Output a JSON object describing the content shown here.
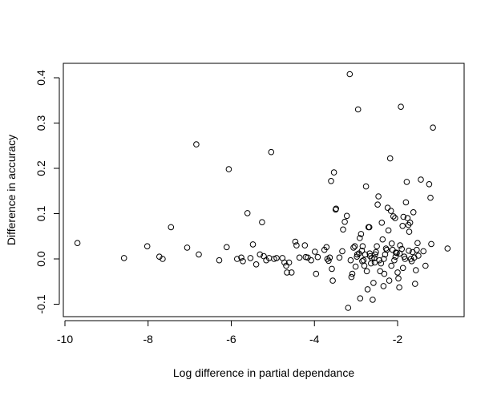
{
  "chart_data": {
    "type": "scatter",
    "title": "",
    "xlabel": "Log difference in partial dependance",
    "ylabel": "Difference in accuracy",
    "xlim": [
      -10,
      -0.6
    ],
    "ylim": [
      -0.12,
      0.44
    ],
    "x_ticks": [
      -10,
      -8,
      -6,
      -4,
      -2
    ],
    "x_tick_labels": [
      "-10",
      "-8",
      "-6",
      "-4",
      "-2"
    ],
    "y_ticks": [
      -0.1,
      0.0,
      0.1,
      0.2,
      0.3,
      0.4
    ],
    "y_tick_labels": [
      "-0.1",
      "0.0",
      "0.1",
      "0.2",
      "0.3",
      "0.4"
    ],
    "grid": false,
    "legend": "none",
    "marker": "open-circle",
    "colors": {
      "marker": "#000000",
      "axis": "#000000",
      "background": "#ffffff"
    },
    "points": [
      [
        -9.7,
        0.035
      ],
      [
        -8.58,
        0.002
      ],
      [
        -8.02,
        0.028
      ],
      [
        -7.73,
        0.005
      ],
      [
        -7.65,
        0.0
      ],
      [
        -7.45,
        0.07
      ],
      [
        -7.06,
        0.025
      ],
      [
        -6.84,
        0.253
      ],
      [
        -6.78,
        0.01
      ],
      [
        -6.29,
        -0.003
      ],
      [
        -6.11,
        0.026
      ],
      [
        -6.06,
        0.198
      ],
      [
        -5.86,
        0.0
      ],
      [
        -5.76,
        0.003
      ],
      [
        -5.72,
        -0.005
      ],
      [
        -5.61,
        0.101
      ],
      [
        -5.54,
        0.002
      ],
      [
        -5.48,
        0.032
      ],
      [
        -5.4,
        -0.012
      ],
      [
        -5.31,
        0.01
      ],
      [
        -5.26,
        0.081
      ],
      [
        -5.22,
        0.006
      ],
      [
        -5.16,
        -0.003
      ],
      [
        -5.09,
        0.002
      ],
      [
        -5.04,
        0.236
      ],
      [
        -4.97,
        0.0
      ],
      [
        -4.91,
        0.002
      ],
      [
        -4.77,
        0.002
      ],
      [
        -4.72,
        -0.008
      ],
      [
        -4.68,
        -0.015
      ],
      [
        -4.66,
        -0.03
      ],
      [
        -4.61,
        -0.008
      ],
      [
        -4.55,
        -0.03
      ],
      [
        -4.46,
        0.038
      ],
      [
        -4.43,
        0.03
      ],
      [
        -4.36,
        0.003
      ],
      [
        -4.23,
        0.03
      ],
      [
        -4.21,
        0.004
      ],
      [
        -4.16,
        0.003
      ],
      [
        -4.08,
        -0.003
      ],
      [
        -3.99,
        0.016
      ],
      [
        -3.96,
        -0.033
      ],
      [
        -3.92,
        0.004
      ],
      [
        -3.76,
        0.02
      ],
      [
        -3.71,
        0.026
      ],
      [
        -3.69,
        0.0
      ],
      [
        -3.66,
        -0.004
      ],
      [
        -3.63,
        0.003
      ],
      [
        -3.6,
        0.172
      ],
      [
        -3.58,
        -0.022
      ],
      [
        -3.56,
        -0.048
      ],
      [
        -3.53,
        0.191
      ],
      [
        -3.49,
        0.109
      ],
      [
        -3.48,
        0.111
      ],
      [
        -3.4,
        0.003
      ],
      [
        -3.33,
        0.017
      ],
      [
        -3.31,
        0.065
      ],
      [
        -3.27,
        0.082
      ],
      [
        -3.22,
        0.095
      ],
      [
        -3.19,
        -0.108
      ],
      [
        -3.15,
        0.408
      ],
      [
        -3.13,
        -0.003
      ],
      [
        -3.11,
        -0.04
      ],
      [
        -3.09,
        -0.033
      ],
      [
        -3.06,
        0.025
      ],
      [
        -3.03,
        0.028
      ],
      [
        -3.01,
        -0.017
      ],
      [
        -2.98,
        0.005
      ],
      [
        -2.95,
        0.33
      ],
      [
        -2.93,
        0.012
      ],
      [
        -2.91,
        0.046
      ],
      [
        -2.9,
        -0.087
      ],
      [
        -2.88,
        0.055
      ],
      [
        -2.86,
        0.018
      ],
      [
        -2.84,
        0.028
      ],
      [
        -2.82,
        -0.003
      ],
      [
        -2.8,
        -0.015
      ],
      [
        -2.78,
        0.01
      ],
      [
        -2.76,
        0.16
      ],
      [
        -2.74,
        -0.027
      ],
      [
        -2.72,
        -0.067
      ],
      [
        -2.7,
        0.07
      ],
      [
        -2.68,
        0.07
      ],
      [
        -2.66,
        0.006
      ],
      [
        -2.64,
        -0.01
      ],
      [
        -2.62,
        0.002
      ],
      [
        -2.6,
        -0.09
      ],
      [
        -2.58,
        -0.053
      ],
      [
        -2.56,
        0.002
      ],
      [
        -2.54,
        0.01
      ],
      [
        -2.52,
        0.015
      ],
      [
        -2.5,
        0.028
      ],
      [
        -2.48,
        0.12
      ],
      [
        -2.46,
        0.138
      ],
      [
        -2.44,
        -0.003
      ],
      [
        -2.42,
        -0.027
      ],
      [
        -2.4,
        -0.01
      ],
      [
        -2.38,
        0.08
      ],
      [
        -2.36,
        0.043
      ],
      [
        -2.34,
        -0.06
      ],
      [
        -2.32,
        -0.033
      ],
      [
        -2.3,
        0.01
      ],
      [
        -2.28,
        0.023
      ],
      [
        -2.26,
        0.02
      ],
      [
        -2.24,
        0.113
      ],
      [
        -2.22,
        0.063
      ],
      [
        -2.2,
        -0.048
      ],
      [
        -2.18,
        0.222
      ],
      [
        -2.16,
        0.106
      ],
      [
        -2.14,
        0.034
      ],
      [
        -2.12,
        0.02
      ],
      [
        -2.1,
        0.094
      ],
      [
        -2.08,
        -0.003
      ],
      [
        -2.06,
        0.09
      ],
      [
        -2.04,
        0.014
      ],
      [
        -2.02,
        0.013
      ],
      [
        -2.0,
        -0.03
      ],
      [
        -1.98,
        -0.043
      ],
      [
        -1.96,
        -0.063
      ],
      [
        -1.94,
        0.03
      ],
      [
        -1.92,
        0.336
      ],
      [
        -1.9,
        0.022
      ],
      [
        -1.88,
        0.073
      ],
      [
        -1.86,
        0.093
      ],
      [
        -1.84,
        0.005
      ],
      [
        -1.82,
        0.0
      ],
      [
        -1.8,
        0.125
      ],
      [
        -1.78,
        0.17
      ],
      [
        -1.76,
        0.09
      ],
      [
        -1.74,
        0.075
      ],
      [
        -1.72,
        0.06
      ],
      [
        -1.7,
        0.08
      ],
      [
        -1.68,
        0.0
      ],
      [
        -1.66,
        -0.005
      ],
      [
        -1.64,
        0.015
      ],
      [
        -1.62,
        0.103
      ],
      [
        -1.6,
        0.003
      ],
      [
        -1.58,
        -0.055
      ],
      [
        -1.56,
        -0.025
      ],
      [
        -1.54,
        0.02
      ],
      [
        -1.52,
        0.035
      ],
      [
        -1.5,
        0.007
      ],
      [
        -1.44,
        0.175
      ],
      [
        -1.38,
        0.017
      ],
      [
        -1.33,
        -0.015
      ],
      [
        -1.24,
        0.165
      ],
      [
        -1.21,
        0.135
      ],
      [
        -1.19,
        0.033
      ],
      [
        -1.15,
        0.29
      ],
      [
        -0.8,
        0.023
      ],
      [
        -2.97,
        0.01
      ],
      [
        -2.85,
        -0.005
      ],
      [
        -2.67,
        0.012
      ],
      [
        -2.55,
        -0.008
      ],
      [
        -2.33,
        0.0
      ],
      [
        -2.15,
        -0.015
      ],
      [
        -2.05,
        0.005
      ],
      [
        -1.95,
        0.012
      ],
      [
        -1.87,
        -0.02
      ],
      [
        -1.73,
        0.018
      ]
    ]
  }
}
